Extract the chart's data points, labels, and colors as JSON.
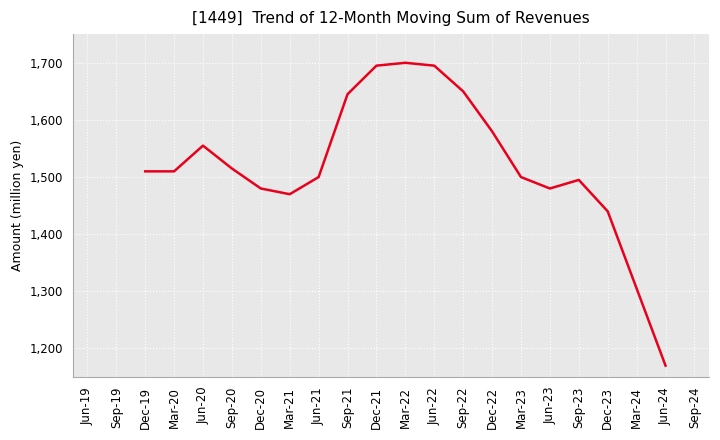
{
  "title": "[1449]  Trend of 12-Month Moving Sum of Revenues",
  "ylabel": "Amount (million yen)",
  "line_color": "#e8001c",
  "background_color": "#ffffff",
  "plot_bg_color": "#e8e8e8",
  "grid_color": "#ffffff",
  "ylim": [
    1150,
    1750
  ],
  "yticks": [
    1200,
    1300,
    1400,
    1500,
    1600,
    1700
  ],
  "dates": [
    "Jun-19",
    "Sep-19",
    "Dec-19",
    "Mar-20",
    "Jun-20",
    "Sep-20",
    "Dec-20",
    "Mar-21",
    "Jun-21",
    "Sep-21",
    "Dec-21",
    "Mar-22",
    "Jun-22",
    "Sep-22",
    "Dec-22",
    "Mar-23",
    "Jun-23",
    "Sep-23",
    "Dec-23",
    "Mar-24",
    "Jun-24",
    "Sep-24"
  ],
  "values": [
    null,
    null,
    1510,
    1510,
    1555,
    1515,
    1480,
    1470,
    1500,
    1645,
    1695,
    1700,
    1695,
    1650,
    1580,
    1500,
    1480,
    1495,
    1440,
    1305,
    1170,
    null
  ],
  "title_fontsize": 11,
  "tick_fontsize": 8.5,
  "label_fontsize": 9
}
